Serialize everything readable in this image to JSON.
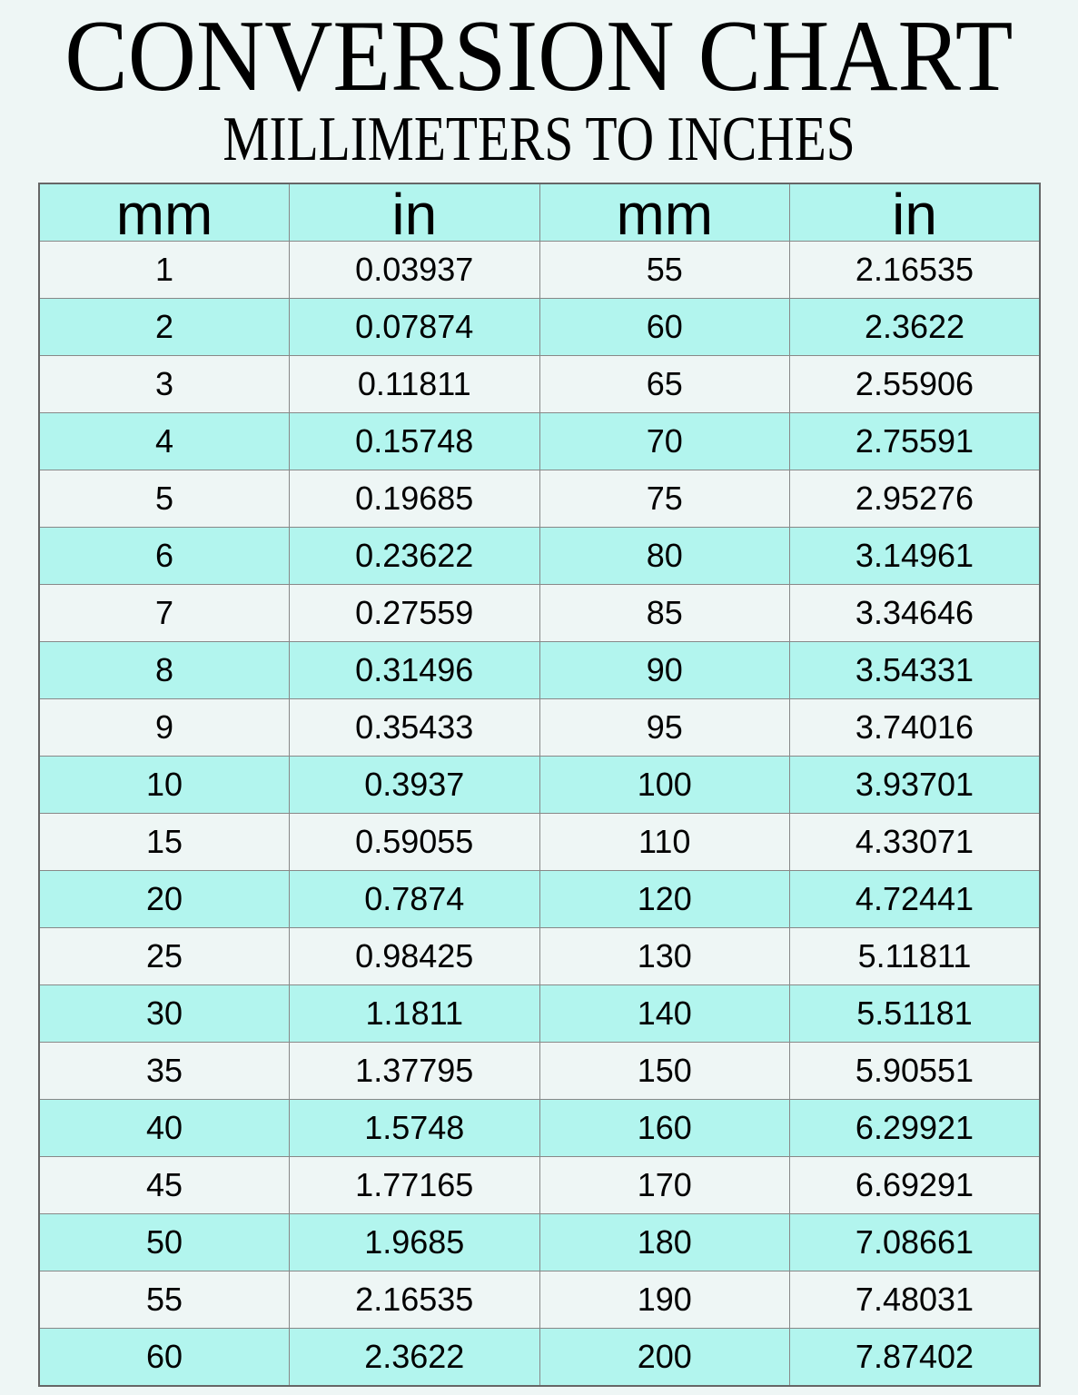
{
  "title": "CONVERSION CHART",
  "subtitle": "MILLIMETERS TO INCHES",
  "colors": {
    "background": "#eef6f5",
    "highlight": "#b2f5ee",
    "border": "#888888"
  },
  "chart_data": {
    "type": "table",
    "columns": [
      "mm",
      "in",
      "mm",
      "in"
    ],
    "rows": [
      [
        "1",
        "0.03937",
        "55",
        "2.16535"
      ],
      [
        "2",
        "0.07874",
        "60",
        "2.3622"
      ],
      [
        "3",
        "0.11811",
        "65",
        "2.55906"
      ],
      [
        "4",
        "0.15748",
        "70",
        "2.75591"
      ],
      [
        "5",
        "0.19685",
        "75",
        "2.95276"
      ],
      [
        "6",
        "0.23622",
        "80",
        "3.14961"
      ],
      [
        "7",
        "0.27559",
        "85",
        "3.34646"
      ],
      [
        "8",
        "0.31496",
        "90",
        "3.54331"
      ],
      [
        "9",
        "0.35433",
        "95",
        "3.74016"
      ],
      [
        "10",
        "0.3937",
        "100",
        "3.93701"
      ],
      [
        "15",
        "0.59055",
        "110",
        "4.33071"
      ],
      [
        "20",
        "0.7874",
        "120",
        "4.72441"
      ],
      [
        "25",
        "0.98425",
        "130",
        "5.11811"
      ],
      [
        "30",
        "1.1811",
        "140",
        "5.51181"
      ],
      [
        "35",
        "1.37795",
        "150",
        "5.90551"
      ],
      [
        "40",
        "1.5748",
        "160",
        "6.29921"
      ],
      [
        "45",
        "1.77165",
        "170",
        "6.69291"
      ],
      [
        "50",
        "1.9685",
        "180",
        "7.08661"
      ],
      [
        "55",
        "2.16535",
        "190",
        "7.48031"
      ],
      [
        "60",
        "2.3622",
        "200",
        "7.87402"
      ]
    ]
  }
}
